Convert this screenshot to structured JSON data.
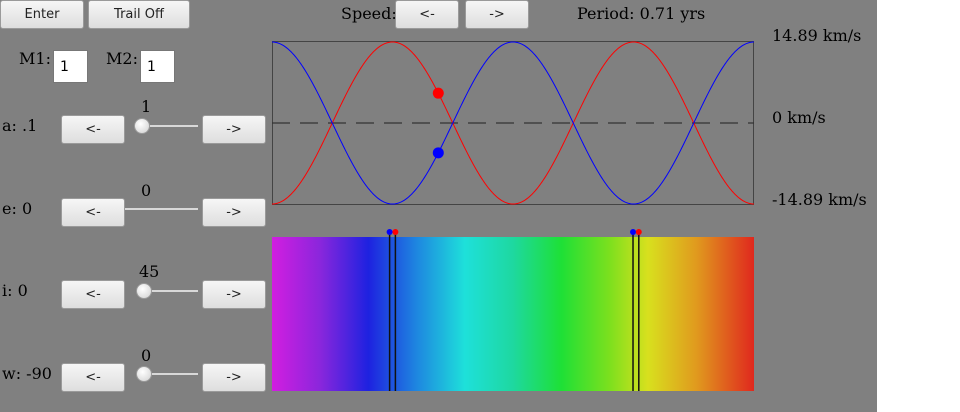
{
  "toolbar": {
    "enter_label": "Enter",
    "trail_label": "Trail Off",
    "speed_label": "Speed:",
    "speed_down_label": "<-",
    "speed_up_label": "->",
    "period_text": "Period: 0.71 yrs"
  },
  "masses": {
    "m1_label": "M1:",
    "m1_value": "1",
    "m2_label": "M2:",
    "m2_value": "1"
  },
  "params": [
    {
      "label": "a: .1",
      "value": "1",
      "fraction": 0.0,
      "dec_label": "<-",
      "inc_label": "->"
    },
    {
      "label": "e: 0",
      "value": "0",
      "fraction": 0.0,
      "dec_label": "<-",
      "inc_label": "->"
    },
    {
      "label": "i: 0",
      "value": "45",
      "fraction": 0.0,
      "dec_label": "<-",
      "inc_label": "->"
    },
    {
      "label": "w: -90",
      "value": "0",
      "fraction": 0.0,
      "dec_label": "<-",
      "inc_label": "->"
    }
  ],
  "colors": {
    "star1": "#ff0000",
    "star2": "#0000ff",
    "background": "#808080",
    "chart_bg": "#808080"
  },
  "chart_data": {
    "type": "line",
    "ylabel_ticks": [
      "14.89 km/s",
      "0 km/s",
      "-14.89 km/s"
    ],
    "ylim": [
      -14.89,
      14.89
    ],
    "x_range_phase": [
      0,
      2
    ],
    "series": [
      {
        "color": "#ff0000",
        "amplitude": 14.89,
        "cycles": 2,
        "phase_start": "min"
      },
      {
        "color": "#0000ff",
        "amplitude": 14.89,
        "cycles": 2,
        "phase_start": "max"
      }
    ],
    "current_phase": 0.345,
    "zero_line": "dashed"
  },
  "spectrum": {
    "line_pairs": [
      0.25,
      0.755
    ],
    "shift": 0.012
  }
}
